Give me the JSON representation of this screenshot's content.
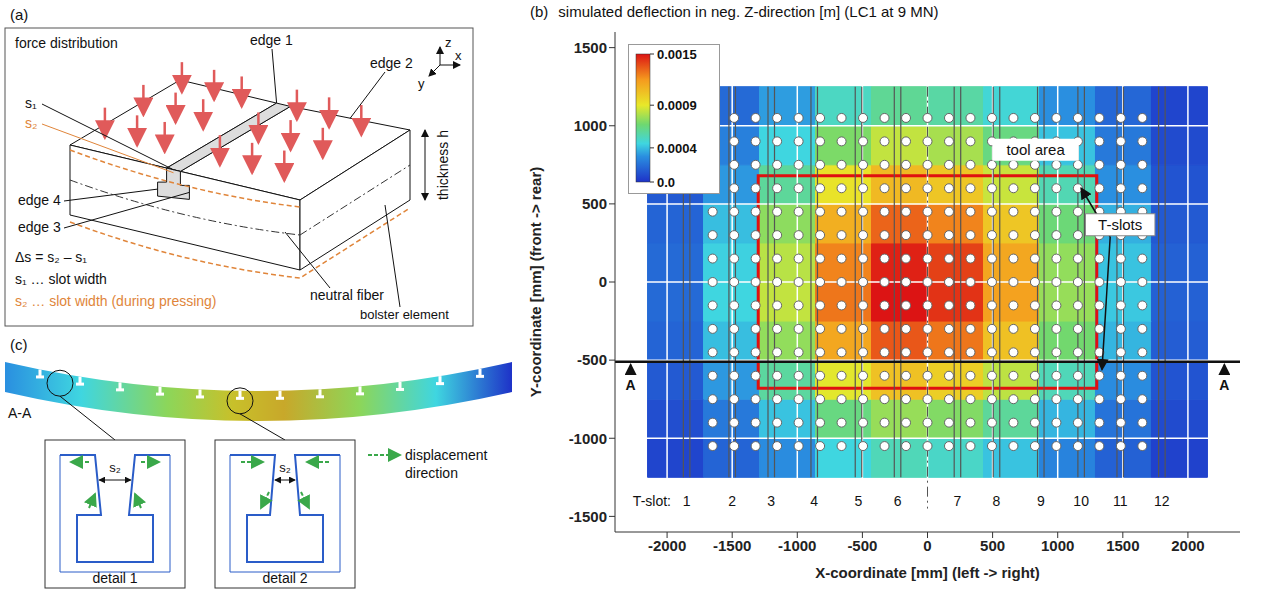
{
  "panels": {
    "a": {
      "label": "(a)",
      "force": "force distribution",
      "edge_1": "edge 1",
      "edge_2": "edge 2",
      "edge_3": "edge 3",
      "edge_4": "edge 4",
      "s1": "s₁",
      "s2": "s₂",
      "axis_x": "x",
      "axis_y": "y",
      "axis_z": "z",
      "thickness": "thickness h",
      "neutral_fiber": "neutral fiber",
      "bolster": "bolster element",
      "delta_s": "Δs = s₂ – s₁",
      "s1_def": "s₁ … slot width",
      "s2_def": "s₂ … slot width (during pressing)"
    },
    "c": {
      "label": "(c)",
      "section": "A-A",
      "detail_1": "detail 1",
      "detail_2": "detail 2",
      "s2": "s₂",
      "displacement_legend": "displacement direction"
    }
  },
  "chart_data": {
    "type": "heatmap",
    "panel_label": "(b)",
    "title": "simulated deflection in neg. Z-direction [m] (LC1 at 9 MN)",
    "x_label": "X-coordinate [mm] (left -> right)",
    "y_label": "Y-coordinate [mm] (front -> rear)",
    "xlim": [
      -2400,
      2400
    ],
    "xticks": [
      -2000,
      -1500,
      -1000,
      -500,
      0,
      500,
      1000,
      1500,
      2000
    ],
    "ylim": [
      -1600,
      1600
    ],
    "yticks": [
      -1500,
      -1000,
      -500,
      0,
      500,
      1000,
      1500
    ],
    "grid": true,
    "cells": {
      "x_edges": [
        -2150,
        -1720,
        -1290,
        -860,
        -430,
        0,
        430,
        860,
        1290,
        1720,
        2150
      ],
      "y_edges": [
        -1250,
        -1000,
        -750,
        -500,
        -250,
        0,
        250,
        500,
        750,
        1000,
        1250
      ],
      "values": [
        [
          6e-05,
          0.00016,
          0.00029,
          0.00045,
          0.00053,
          0.0005,
          0.00041,
          0.00026,
          0.00015,
          5e-05
        ],
        [
          9e-05,
          0.00023,
          0.00041,
          0.00064,
          0.00075,
          0.00071,
          0.00059,
          0.00038,
          0.00021,
          8e-05
        ],
        [
          0.00013,
          0.00032,
          0.00058,
          0.00089,
          0.00105,
          0.001,
          0.00082,
          0.00053,
          0.00029,
          0.00011
        ],
        [
          0.00016,
          0.0004,
          0.00074,
          0.00115,
          0.00135,
          0.00128,
          0.00105,
          0.00068,
          0.00038,
          0.00014
        ],
        [
          0.00018,
          0.00045,
          0.00083,
          0.00128,
          0.0015,
          0.00143,
          0.00117,
          0.00075,
          0.00042,
          0.00015
        ],
        [
          0.00018,
          0.00044,
          0.00081,
          0.00125,
          0.00147,
          0.0014,
          0.00115,
          0.00074,
          0.00041,
          0.00015
        ],
        [
          0.00016,
          0.0004,
          0.00073,
          0.00112,
          0.00132,
          0.00125,
          0.00103,
          0.00066,
          0.00037,
          0.00013
        ],
        [
          0.00013,
          0.00032,
          0.00059,
          0.00092,
          0.00108,
          0.00103,
          0.00084,
          0.00054,
          0.0003,
          0.00011
        ],
        [
          0.0001,
          0.00025,
          0.00045,
          0.0007,
          0.00083,
          0.00078,
          0.00064,
          0.00041,
          0.00023,
          8e-05
        ],
        [
          7e-05,
          0.00018,
          0.00033,
          0.00051,
          0.0006,
          0.00057,
          0.00047,
          0.0003,
          0.00017,
          6e-05
        ]
      ]
    },
    "colorbar": {
      "range": [
        0,
        0.0015
      ],
      "ticks": [
        {
          "value": 0,
          "label": "0.0"
        },
        0.0004,
        0.0009,
        0.0015
      ]
    },
    "tool_area": {
      "label": "tool area",
      "x": [
        -1300,
        1300
      ],
      "y": [
        -680,
        680
      ]
    },
    "t_slots": {
      "label": "T-slots",
      "axis_label": "T-slot:",
      "numbers": [
        1,
        2,
        3,
        4,
        5,
        6,
        7,
        8,
        9,
        10,
        11,
        12
      ],
      "x": [
        -1850,
        -1500,
        -1200,
        -870,
        -530,
        -230,
        230,
        530,
        870,
        1180,
        1480,
        1800
      ]
    },
    "section": {
      "label": "A",
      "y": -510
    }
  }
}
